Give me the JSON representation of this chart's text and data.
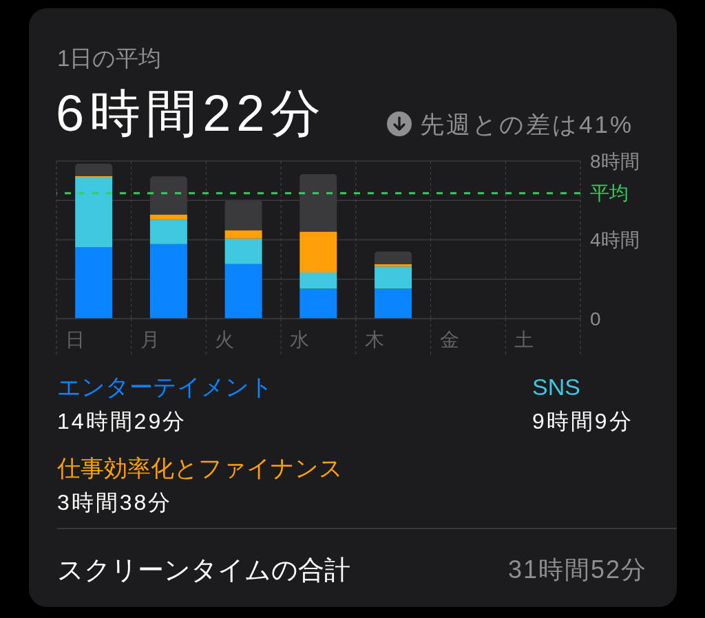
{
  "chart_data": {
    "type": "bar",
    "title": "1日の平均",
    "subtitle": "6時間22分",
    "categories": [
      "日",
      "月",
      "火",
      "水",
      "木",
      "金",
      "土"
    ],
    "series": [
      {
        "name": "エンターテイメント",
        "color": "#0a84ff",
        "values": [
          3.62,
          3.78,
          2.77,
          1.52,
          1.52,
          null,
          null
        ]
      },
      {
        "name": "SNS",
        "color": "#40c8e0",
        "values": [
          3.58,
          1.24,
          1.29,
          0.82,
          1.13,
          null,
          null
        ]
      },
      {
        "name": "仕事効率化とファイナンス",
        "color": "#ff9f0a",
        "values": [
          0.03,
          0.26,
          0.43,
          2.08,
          0.12,
          null,
          null
        ]
      },
      {
        "color": "#3a3a3c",
        "values": [
          0.64,
          1.94,
          1.54,
          2.92,
          0.64,
          null,
          null
        ]
      }
    ],
    "stacked": true,
    "ylim": [
      0,
      8
    ],
    "yticks": [
      0,
      {
        "value": 2,
        "label": null
      },
      {
        "value": 4,
        "label": "4時間"
      },
      {
        "value": 6,
        "label": null
      },
      {
        "value": 8,
        "label": "8時間"
      }
    ],
    "grid": true,
    "legend": "bottom",
    "ref_lines": [
      {
        "axis": "y",
        "value": 6.37,
        "label": "平均",
        "color": "#30d158",
        "line_style": "dashed"
      }
    ],
    "annotations": [
      "先週との差は41%",
      "14時間29分",
      "9時間9分",
      "3時間38分",
      "スクリーンタイムの合計",
      "31時間52分"
    ]
  }
}
